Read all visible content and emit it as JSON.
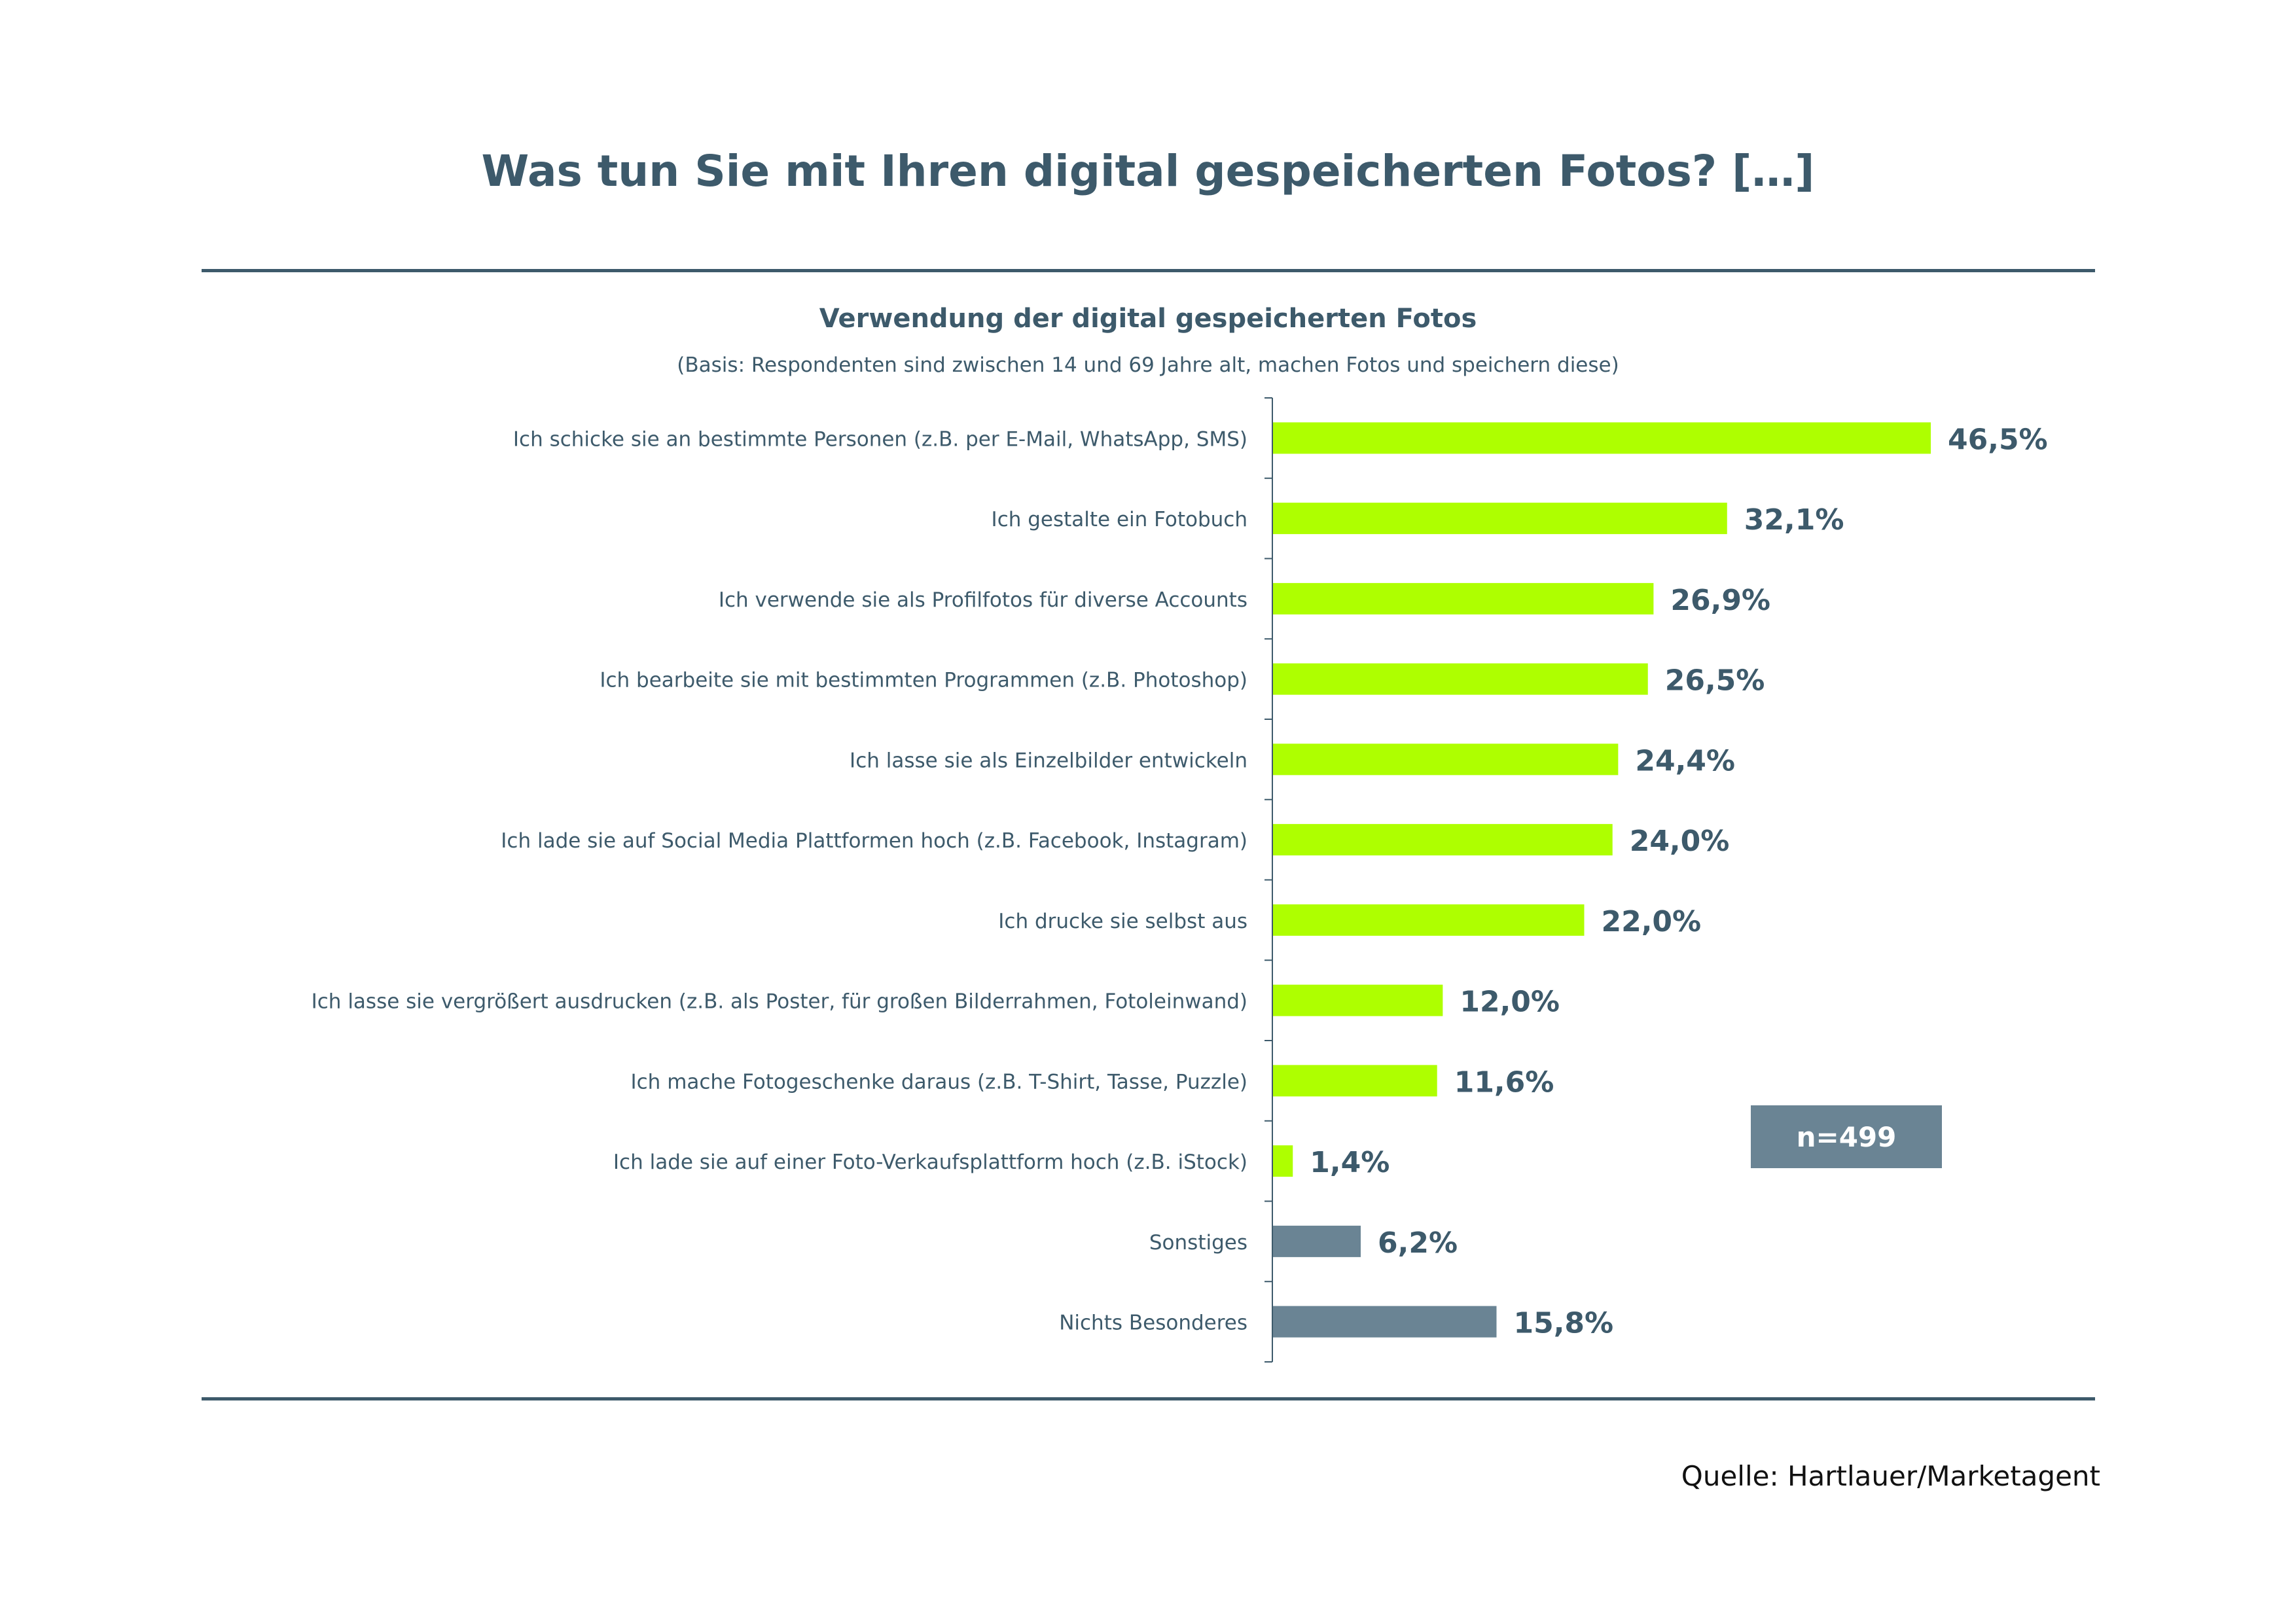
{
  "page": {
    "title": "Was tun Sie mit Ihren digital gespeicherten Fotos? […]",
    "source": "Quelle: Hartlauer/Marketagent"
  },
  "sample_badge": "n=499",
  "colors": {
    "text": "#3d5a6b",
    "bar_highlight": "#aeff00",
    "bar_other": "#6a8494",
    "badge": "#6a8494"
  },
  "chart_data": {
    "type": "bar",
    "orientation": "horizontal",
    "title": "Verwendung der digital gespeicherten Fotos",
    "subtitle": "(Basis: Respondenten sind zwischen 14 und 69 Jahre alt, machen Fotos und speichern diese)",
    "xlabel": "",
    "ylabel": "",
    "unit": "%",
    "xlim": [
      0,
      50
    ],
    "grid": false,
    "categories": [
      "Ich schicke sie an bestimmte Personen (z.B. per E-Mail, WhatsApp, SMS)",
      "Ich gestalte ein Fotobuch",
      "Ich verwende sie als Profilfotos für diverse Accounts",
      "Ich bearbeite sie mit bestimmten Programmen (z.B. Photoshop)",
      "Ich lasse sie als Einzelbilder entwickeln",
      "Ich lade sie auf Social Media Plattformen hoch (z.B. Facebook, Instagram)",
      "Ich drucke sie selbst aus",
      "Ich lasse sie vergrößert ausdrucken (z.B. als Poster, für großen Bilderrahmen, Fotoleinwand)",
      "Ich mache Fotogeschenke daraus (z.B. T-Shirt, Tasse, Puzzle)",
      "Ich lade sie auf einer Foto-Verkaufsplattform hoch (z.B. iStock)",
      "Sonstiges",
      "Nichts Besonderes"
    ],
    "values": [
      46.5,
      32.1,
      26.9,
      26.5,
      24.4,
      24.0,
      22.0,
      12.0,
      11.6,
      1.4,
      6.2,
      15.8
    ],
    "value_labels": [
      "46,5%",
      "32,1%",
      "26,9%",
      "26,5%",
      "24,4%",
      "24,0%",
      "22,0%",
      "12,0%",
      "11,6%",
      "1,4%",
      "6,2%",
      "15,8%"
    ],
    "bar_groups": [
      "highlight",
      "highlight",
      "highlight",
      "highlight",
      "highlight",
      "highlight",
      "highlight",
      "highlight",
      "highlight",
      "highlight",
      "other",
      "other"
    ],
    "n": 499
  }
}
